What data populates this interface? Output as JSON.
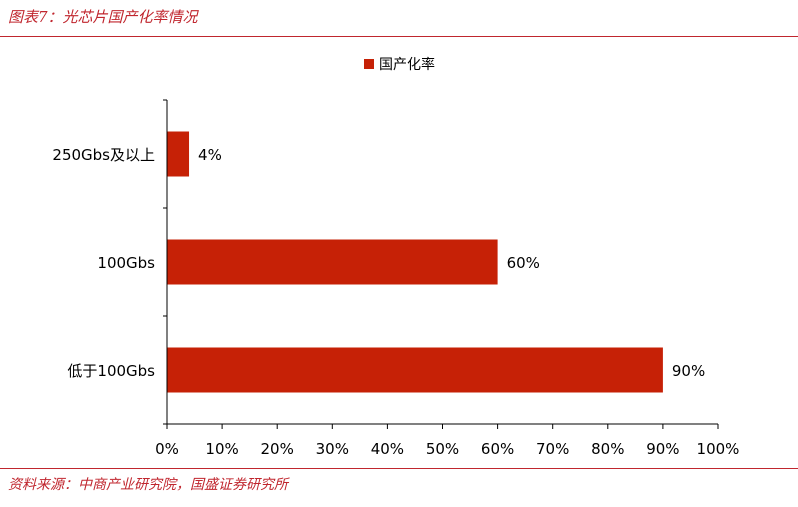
{
  "header": {
    "title": "图表7：光芯片国产化率情况"
  },
  "footer": {
    "source": "资料来源：中商产业研究院，国盛证券研究所"
  },
  "colors": {
    "accent": "#c0262e",
    "bar": "#c62106"
  },
  "chart_data": {
    "type": "bar",
    "orientation": "horizontal",
    "categories": [
      "250Gbs及以上",
      "100Gbs",
      "低于100Gbs"
    ],
    "series": [
      {
        "name": "国产化率",
        "values": [
          4,
          60,
          90
        ],
        "labels": [
          "4%",
          "60%",
          "90%"
        ]
      }
    ],
    "x_ticks": [
      "0%",
      "10%",
      "20%",
      "30%",
      "40%",
      "50%",
      "60%",
      "70%",
      "80%",
      "90%",
      "100%"
    ],
    "xlim": [
      0,
      100
    ],
    "grid": false,
    "legend": "top-center"
  }
}
